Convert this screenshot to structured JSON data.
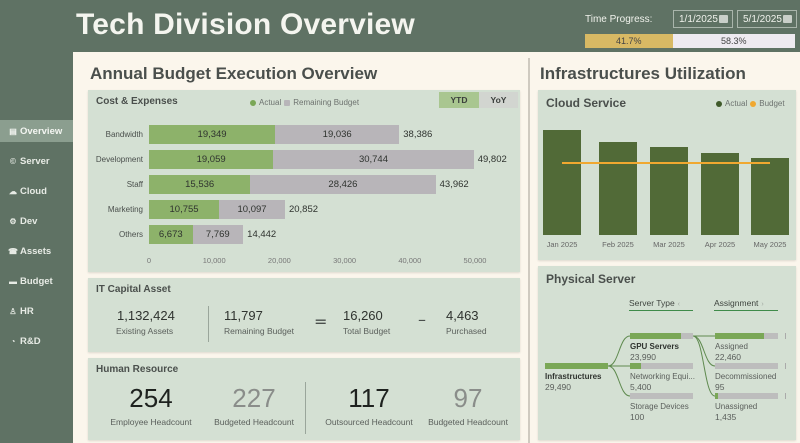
{
  "header": {
    "title": "Tech Division Overview",
    "time_progress_label": "Time Progress:",
    "start_date": "1/1/2025",
    "end_date": "5/1/2025",
    "progress": {
      "elapsed_pct": 41.7,
      "elapsed_label": "41.7%",
      "remaining_label": "58.3%"
    }
  },
  "sidebar": {
    "items": [
      {
        "label": "Overview",
        "icon": "document-icon",
        "active": true
      },
      {
        "label": "Server",
        "icon": "copyright-icon",
        "active": false
      },
      {
        "label": "Cloud",
        "icon": "cloud-icon",
        "active": false
      },
      {
        "label": "Dev",
        "icon": "gear-icon",
        "active": false
      },
      {
        "label": "Assets",
        "icon": "building-icon",
        "active": false
      },
      {
        "label": "Budget",
        "icon": "folder-icon",
        "active": false
      },
      {
        "label": "HR",
        "icon": "person-icon",
        "active": false
      },
      {
        "label": "R&D",
        "icon": "clock-icon",
        "active": false
      }
    ]
  },
  "budget_section": {
    "title": "Annual Budget Execution Overview",
    "cost_card": {
      "title": "Cost & Expenses",
      "legend": {
        "actual": "Actual",
        "remaining": "Remaining Budget"
      },
      "toggles": {
        "ytd": "YTD",
        "yoy": "YoY"
      },
      "active_toggle": "YTD"
    },
    "it_capital": {
      "title": "IT Capital Asset",
      "existing_assets": {
        "value": "1,132,424",
        "label": "Existing Assets"
      },
      "remaining_budget": {
        "value": "11,797",
        "label": "Remaining Budget"
      },
      "equals": "=",
      "total_budget": {
        "value": "16,260",
        "label": "Total Budget"
      },
      "minus": "–",
      "purchased": {
        "value": "4,463",
        "label": "Purchased"
      }
    },
    "human_resource": {
      "title": "Human Resource",
      "employee_headcount": {
        "value": "254",
        "label": "Employee Headcount"
      },
      "employee_budgeted": {
        "value": "227",
        "label": "Budgeted Headcount"
      },
      "outsourced_headcount": {
        "value": "117",
        "label": "Outsourced Headcount"
      },
      "outsourced_budgeted": {
        "value": "97",
        "label": "Budgeted Headcount"
      }
    }
  },
  "infra_section": {
    "title": "Infrastructures Utilization",
    "cloud": {
      "title": "Cloud Service",
      "legend": {
        "actual": "Actual",
        "budget": "Budget"
      }
    },
    "physical": {
      "title": "Physical Server",
      "headers": {
        "server_type": "Server Type",
        "assignment": "Assignment"
      },
      "root": {
        "name": "Infrastructures",
        "value": "29,490",
        "fill": 1.0
      },
      "level1": [
        {
          "name": "GPU Servers",
          "value": "23,990",
          "fill": 0.81,
          "bold": true
        },
        {
          "name": "Networking Equi...",
          "value": "5,400",
          "fill": 0.18,
          "bold": false
        },
        {
          "name": "Storage Devices",
          "value": "100",
          "fill": 0.0,
          "bold": false
        }
      ],
      "level2": [
        {
          "name": "Assigned",
          "value": "22,460",
          "fill": 0.77
        },
        {
          "name": "Decommissioned",
          "value": "95",
          "fill": 0.0
        },
        {
          "name": "Unassigned",
          "value": "1,435",
          "fill": 0.05
        }
      ]
    }
  },
  "chart_data": [
    {
      "type": "bar",
      "orientation": "horizontal-stacked",
      "title": "Cost & Expenses",
      "categories": [
        "Bandwidth",
        "Development",
        "Staff",
        "Marketing",
        "Others"
      ],
      "series": [
        {
          "name": "Actual",
          "values": [
            19349,
            19059,
            15536,
            10755,
            6673
          ],
          "labels": [
            "19,349",
            "19,059",
            "15,536",
            "10,755",
            "6,673"
          ],
          "color": "#8db26a"
        },
        {
          "name": "Remaining Budget",
          "values": [
            19036,
            30744,
            28426,
            10097,
            7769
          ],
          "labels": [
            "19,036",
            "30,744",
            "28,426",
            "10,097",
            "7,769"
          ],
          "color": "#b8b5b9"
        }
      ],
      "totals": [
        "38,386",
        "49,802",
        "43,962",
        "20,852",
        "14,442"
      ],
      "x_ticks": [
        "0",
        "10,000",
        "20,000",
        "30,000",
        "40,000",
        "50,000"
      ],
      "xlim": [
        0,
        50000
      ],
      "legend": "top-center"
    },
    {
      "type": "bar",
      "title": "Cloud Service",
      "categories": [
        "Jan 2025",
        "Feb 2025",
        "Mar 2025",
        "Apr 2025",
        "May 2025"
      ],
      "series": [
        {
          "name": "Actual",
          "type": "bar",
          "values": [
            100,
            89,
            84,
            78,
            73
          ],
          "color": "#516a37"
        },
        {
          "name": "Budget",
          "type": "line",
          "values": [
            70,
            70,
            70,
            70,
            70
          ],
          "color": "#f0a830"
        }
      ],
      "ylim": [
        0,
        100
      ],
      "y_axis_visible": false,
      "legend": "top-right"
    }
  ]
}
